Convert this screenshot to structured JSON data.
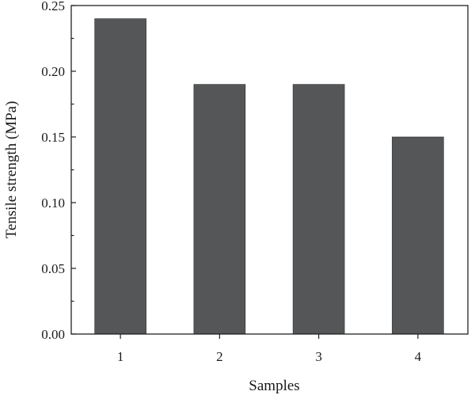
{
  "chart_data": {
    "type": "bar",
    "categories": [
      "1",
      "2",
      "3",
      "4"
    ],
    "values": [
      0.24,
      0.19,
      0.19,
      0.15
    ],
    "xlabel": "Samples",
    "ylabel": "Tensile strength (MPa)",
    "ylim": [
      0,
      0.25
    ],
    "yticks": [
      "0.00",
      "0.05",
      "0.10",
      "0.15",
      "0.20",
      "0.25"
    ],
    "grid": false,
    "legend": "none",
    "bar_color": "#555658"
  }
}
